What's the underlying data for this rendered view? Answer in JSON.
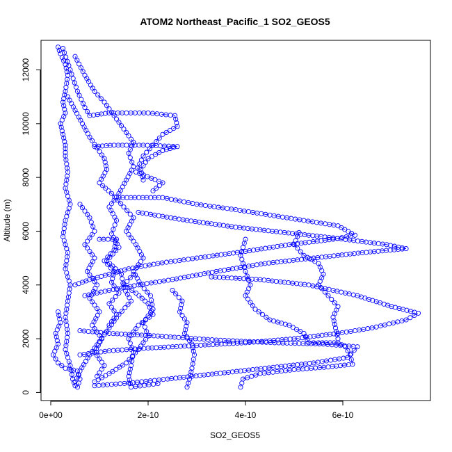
{
  "chart_data": {
    "type": "scatter",
    "title": "ATOM2 Northeast_Pacific_1 SO2_GEOS5",
    "xlabel": "SO2_GEOS5",
    "ylabel": "Altitude (m)",
    "xlim": [
      -2e-11,
      7.8e-10
    ],
    "ylim": [
      -300,
      13100
    ],
    "x_ticks": [
      0,
      2e-10,
      4e-10,
      6e-10
    ],
    "x_tick_labels": [
      "0e+00",
      "2e-10",
      "4e-10",
      "6e-10"
    ],
    "y_ticks": [
      0,
      2000,
      4000,
      6000,
      8000,
      10000,
      12000
    ],
    "y_tick_labels": [
      "0",
      "2000",
      "4000",
      "6000",
      "8000",
      "10000",
      "12000"
    ],
    "marker": "open-circle",
    "color": "#0000ff",
    "grid": false,
    "series": [
      {
        "values": [
          [
            1.5e-11,
            12850
          ],
          [
            2e-11,
            12600
          ],
          [
            3e-11,
            12200
          ],
          [
            3.5e-11,
            11800
          ],
          [
            3e-11,
            11200
          ],
          [
            2.5e-11,
            10800
          ],
          [
            3e-11,
            10400
          ],
          [
            2e-11,
            10000
          ],
          [
            2.5e-11,
            9600
          ],
          [
            3e-11,
            9200
          ],
          [
            3e-11,
            8800
          ],
          [
            3.5e-11,
            8200
          ],
          [
            3e-11,
            7600
          ],
          [
            4e-11,
            7000
          ],
          [
            3e-11,
            6400
          ],
          [
            2.5e-11,
            5800
          ],
          [
            3.5e-11,
            5200
          ],
          [
            3e-11,
            4600
          ],
          [
            4e-11,
            4000
          ],
          [
            3.5e-11,
            3400
          ],
          [
            3e-11,
            2800
          ],
          [
            3.5e-11,
            2200
          ],
          [
            3e-11,
            1600
          ],
          [
            4e-11,
            1000
          ],
          [
            4.5e-11,
            500
          ],
          [
            5e-11,
            250
          ]
        ]
      },
      {
        "values": [
          [
            2.5e-11,
            12800
          ],
          [
            4e-11,
            12000
          ],
          [
            5.5e-11,
            11200
          ],
          [
            7e-11,
            10600
          ],
          [
            8e-11,
            10300
          ],
          [
            1.2e-10,
            10400
          ],
          [
            2e-10,
            10400
          ],
          [
            2.55e-10,
            10300
          ],
          [
            2.6e-10,
            9900
          ],
          [
            2.3e-10,
            9600
          ],
          [
            2.1e-10,
            9200
          ],
          [
            1.9e-10,
            8800
          ],
          [
            1.75e-10,
            8200
          ],
          [
            2.3e-10,
            7800
          ],
          [
            2.1e-10,
            7500
          ]
        ]
      },
      {
        "values": [
          [
            5e-11,
            12500
          ],
          [
            7e-11,
            11800
          ],
          [
            9e-11,
            11200
          ],
          [
            1.1e-10,
            10800
          ],
          [
            1.3e-10,
            10300
          ],
          [
            1.5e-10,
            9800
          ],
          [
            1.7e-10,
            9300
          ],
          [
            1.6e-10,
            8900
          ],
          [
            1.7e-10,
            8400
          ],
          [
            1.55e-10,
            7900
          ],
          [
            1.4e-10,
            7400
          ],
          [
            1.2e-10,
            6900
          ],
          [
            1.35e-10,
            6400
          ],
          [
            1.25e-10,
            5900
          ],
          [
            1.4e-10,
            5400
          ],
          [
            1.15e-10,
            4900
          ],
          [
            1.45e-10,
            4400
          ],
          [
            1.5e-10,
            3900
          ],
          [
            1.65e-10,
            3400
          ],
          [
            1.4e-10,
            2900
          ],
          [
            1.2e-10,
            2400
          ],
          [
            1e-10,
            1900
          ],
          [
            8e-11,
            1400
          ],
          [
            6e-11,
            800
          ],
          [
            5e-11,
            400
          ]
        ]
      },
      {
        "values": [
          [
            3.5e-11,
            11000
          ],
          [
            5e-11,
            10500
          ],
          [
            6.5e-11,
            10000
          ],
          [
            8e-11,
            9500
          ],
          [
            9.5e-11,
            9100
          ],
          [
            1.1e-10,
            8700
          ],
          [
            1.15e-10,
            8300
          ],
          [
            1e-10,
            7800
          ],
          [
            1.25e-10,
            7400
          ],
          [
            1.5e-10,
            6900
          ],
          [
            1.7e-10,
            6500
          ],
          [
            1.55e-10,
            6000
          ],
          [
            1.75e-10,
            5500
          ],
          [
            1.9e-10,
            5000
          ],
          [
            1.7e-10,
            4500
          ],
          [
            1.85e-10,
            4000
          ],
          [
            2.05e-10,
            3600
          ],
          [
            2.1e-10,
            3100
          ],
          [
            1.9e-10,
            2600
          ],
          [
            2e-10,
            2100
          ],
          [
            1.8e-10,
            1600
          ],
          [
            1.55e-10,
            1100
          ],
          [
            1.2e-10,
            700
          ],
          [
            9e-11,
            400
          ]
        ]
      },
      {
        "values": [
          [
            1.4e-10,
            7250
          ],
          [
            2.3e-10,
            7250
          ],
          [
            3e-10,
            7000
          ],
          [
            3.8e-10,
            6800
          ],
          [
            4.5e-10,
            6600
          ],
          [
            5.2e-10,
            6400
          ],
          [
            5.9e-10,
            6200
          ],
          [
            6.25e-10,
            5850
          ],
          [
            5.8e-10,
            5700
          ],
          [
            4.9e-10,
            5500
          ],
          [
            4e-10,
            5250
          ],
          [
            3e-10,
            5000
          ],
          [
            2.2e-10,
            4800
          ],
          [
            1.6e-10,
            4600
          ],
          [
            1.2e-10,
            4400
          ],
          [
            8e-11,
            4200
          ],
          [
            5e-11,
            4000
          ]
        ]
      },
      {
        "values": [
          [
            1.8e-10,
            6700
          ],
          [
            2.8e-10,
            6400
          ],
          [
            3.8e-10,
            6150
          ],
          [
            4.8e-10,
            5950
          ],
          [
            5.8e-10,
            5750
          ],
          [
            6.9e-10,
            5500
          ],
          [
            7.3e-10,
            5350
          ],
          [
            6.4e-10,
            5200
          ],
          [
            5.4e-10,
            5000
          ],
          [
            4.4e-10,
            4800
          ],
          [
            3.4e-10,
            4500
          ],
          [
            2.5e-10,
            4200
          ],
          [
            1.8e-10,
            4000
          ],
          [
            1.2e-10,
            3800
          ],
          [
            7e-11,
            3600
          ]
        ]
      },
      {
        "values": [
          [
            5.1e-10,
            5950
          ],
          [
            5e-10,
            5500
          ],
          [
            5.2e-10,
            5100
          ],
          [
            5.5e-10,
            4800
          ],
          [
            5.6e-10,
            4400
          ],
          [
            5.5e-10,
            4000
          ],
          [
            5.7e-10,
            3600
          ],
          [
            5.9e-10,
            3200
          ],
          [
            5.8e-10,
            2800
          ],
          [
            5.85e-10,
            2400
          ],
          [
            5.9e-10,
            2000
          ],
          [
            5.9e-10,
            1850
          ],
          [
            6.05e-10,
            1700
          ],
          [
            6.15e-10,
            1400
          ],
          [
            6.2e-10,
            1050
          ],
          [
            5.7e-10,
            950
          ],
          [
            5e-10,
            850
          ],
          [
            4.3e-10,
            700
          ],
          [
            3.95e-10,
            500
          ],
          [
            3.9e-10,
            200
          ]
        ]
      },
      {
        "values": [
          [
            4e-10,
            5700
          ],
          [
            3.9e-10,
            5100
          ],
          [
            4e-10,
            4500
          ],
          [
            4.1e-10,
            4000
          ],
          [
            4e-10,
            3600
          ],
          [
            4.2e-10,
            3100
          ],
          [
            4.5e-10,
            2700
          ],
          [
            4.9e-10,
            2500
          ],
          [
            5.2e-10,
            2200
          ],
          [
            5.3e-10,
            1850
          ],
          [
            5.5e-10,
            1850
          ],
          [
            5.9e-10,
            1850
          ]
        ]
      },
      {
        "values": [
          [
            3.3e-10,
            4300
          ],
          [
            4.3e-10,
            4200
          ],
          [
            5.3e-10,
            4000
          ],
          [
            6.3e-10,
            3600
          ],
          [
            7e-10,
            3200
          ],
          [
            7.55e-10,
            2950
          ],
          [
            7.3e-10,
            2700
          ],
          [
            6.6e-10,
            2400
          ],
          [
            5.9e-10,
            2200
          ],
          [
            5e-10,
            2000
          ],
          [
            4e-10,
            1850
          ],
          [
            3e-10,
            1750
          ],
          [
            2e-10,
            1650
          ],
          [
            1.2e-10,
            1550
          ],
          [
            6e-11,
            1400
          ]
        ]
      },
      {
        "values": [
          [
            6e-11,
            2300
          ],
          [
            1.2e-10,
            2200
          ],
          [
            2.2e-10,
            2100
          ],
          [
            3.4e-10,
            1950
          ],
          [
            4.6e-10,
            1850
          ],
          [
            5.6e-10,
            1800
          ],
          [
            6.3e-10,
            1700
          ],
          [
            6.1e-10,
            1300
          ],
          [
            5.4e-10,
            1100
          ],
          [
            4.4e-10,
            900
          ],
          [
            3.4e-10,
            700
          ],
          [
            2.4e-10,
            500
          ],
          [
            1.6e-10,
            350
          ],
          [
            9e-11,
            250
          ]
        ]
      },
      {
        "values": [
          [
            2.5e-10,
            3800
          ],
          [
            2.7e-10,
            3400
          ],
          [
            2.65e-10,
            3000
          ],
          [
            2.8e-10,
            2600
          ],
          [
            2.75e-10,
            2200
          ],
          [
            2.9e-10,
            1800
          ],
          [
            2.95e-10,
            1400
          ],
          [
            2.9e-10,
            900
          ],
          [
            2.85e-10,
            500
          ],
          [
            2.8e-10,
            200
          ]
        ]
      },
      {
        "values": [
          [
            1.7e-10,
            4400
          ],
          [
            1.5e-10,
            4000
          ],
          [
            1.75e-10,
            3700
          ],
          [
            2e-10,
            3300
          ],
          [
            2.1e-10,
            2900
          ],
          [
            1.8e-10,
            2500
          ],
          [
            1.6e-10,
            2000
          ],
          [
            1.7e-10,
            1500
          ],
          [
            1.65e-10,
            1000
          ],
          [
            1.6e-10,
            600
          ],
          [
            1.65e-10,
            200
          ],
          [
            2.2e-10,
            330
          ]
        ]
      },
      {
        "values": [
          [
            9e-11,
            9150
          ],
          [
            1.3e-10,
            9200
          ],
          [
            1.9e-10,
            9200
          ],
          [
            2.6e-10,
            9150
          ],
          [
            2.3e-10,
            9000
          ],
          [
            2e-10,
            8700
          ],
          [
            1.85e-10,
            8300
          ],
          [
            1.9e-10,
            7900
          ]
        ]
      },
      {
        "values": [
          [
            1.5e-11,
            3000
          ],
          [
            2e-11,
            2600
          ],
          [
            1e-11,
            2200
          ],
          [
            1.5e-11,
            1800
          ],
          [
            5e-12,
            1400
          ],
          [
            1.5e-11,
            1100
          ],
          [
            3e-11,
            900
          ],
          [
            5.5e-11,
            800
          ],
          [
            6e-11,
            500
          ],
          [
            5.5e-11,
            200
          ]
        ]
      },
      {
        "values": [
          [
            6e-11,
            7000
          ],
          [
            8e-11,
            6500
          ],
          [
            9e-11,
            6000
          ],
          [
            7e-11,
            5500
          ],
          [
            9e-11,
            5000
          ],
          [
            7.5e-11,
            4500
          ],
          [
            9.5e-11,
            4000
          ],
          [
            8e-11,
            3500
          ],
          [
            1e-10,
            3000
          ],
          [
            8.5e-11,
            2500
          ],
          [
            1.05e-10,
            2000
          ],
          [
            9e-11,
            1500
          ],
          [
            1.1e-10,
            1000
          ],
          [
            9.5e-11,
            600
          ]
        ]
      },
      {
        "values": [
          [
            1e-10,
            5700
          ],
          [
            1.35e-10,
            5700
          ],
          [
            1.3e-10,
            5300
          ],
          [
            1.1e-10,
            4900
          ],
          [
            1.3e-10,
            4500
          ],
          [
            1.25e-10,
            4100
          ],
          [
            1.4e-10,
            3700
          ],
          [
            1.2e-10,
            3300
          ],
          [
            1.35e-10,
            2900
          ],
          [
            1.2e-10,
            2500
          ]
        ]
      }
    ]
  }
}
